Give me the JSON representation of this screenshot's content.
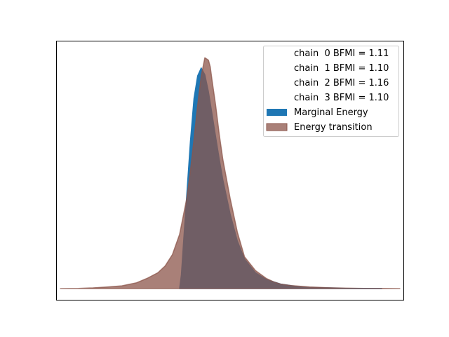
{
  "chart_data": {
    "type": "area",
    "title": "",
    "xlabel": "",
    "ylabel": "",
    "xticks": false,
    "yticks": false,
    "grid": false,
    "legend_position": "top-right",
    "xlim": [
      -4.0,
      5.6
    ],
    "ylim": [
      0.0,
      1.08
    ],
    "legend_entries": [
      {
        "label": "chain  0 BFMI = 1.11",
        "type": "text-only"
      },
      {
        "label": "chain  1 BFMI = 1.10",
        "type": "text-only"
      },
      {
        "label": "chain  2 BFMI = 1.16",
        "type": "text-only"
      },
      {
        "label": "chain  3 BFMI = 1.10",
        "type": "text-only"
      }
    ],
    "series": [
      {
        "name": "Marginal Energy",
        "color": "#1f77b4",
        "opacity": 1.0,
        "x": [
          -0.6,
          -0.55,
          -0.45,
          -0.3,
          -0.2,
          -0.1,
          0.0,
          0.1,
          0.2,
          0.3,
          0.4,
          0.5,
          0.6,
          0.8,
          1.0,
          1.2,
          1.5,
          1.8,
          2.2,
          2.6,
          3.0,
          3.5,
          4.0,
          4.5,
          5.0
        ],
        "y": [
          0.0,
          0.06,
          0.3,
          0.65,
          0.84,
          0.94,
          0.975,
          0.945,
          0.87,
          0.77,
          0.67,
          0.57,
          0.48,
          0.33,
          0.21,
          0.13,
          0.07,
          0.04,
          0.02,
          0.01,
          0.005,
          0.003,
          0.001,
          0.0005,
          0.0
        ]
      },
      {
        "name": "Energy transition",
        "color": "#8c564b",
        "opacity": 0.75,
        "x": [
          -3.9,
          -3.4,
          -3.0,
          -2.6,
          -2.2,
          -1.8,
          -1.5,
          -1.2,
          -1.0,
          -0.8,
          -0.6,
          -0.4,
          -0.3,
          -0.2,
          -0.1,
          0.0,
          0.1,
          0.2,
          0.25,
          0.3,
          0.4,
          0.5,
          0.6,
          0.8,
          1.0,
          1.2,
          1.5,
          1.8,
          2.0,
          2.2,
          2.5,
          3.0,
          3.5,
          4.0,
          4.5,
          5.0,
          5.5
        ],
        "y": [
          0.0,
          0.001,
          0.003,
          0.007,
          0.012,
          0.025,
          0.045,
          0.07,
          0.1,
          0.15,
          0.24,
          0.4,
          0.52,
          0.66,
          0.81,
          0.94,
          1.02,
          1.01,
          0.98,
          0.92,
          0.81,
          0.68,
          0.57,
          0.4,
          0.25,
          0.14,
          0.08,
          0.045,
          0.03,
          0.02,
          0.013,
          0.007,
          0.004,
          0.002,
          0.001,
          0.0005,
          0.0
        ]
      }
    ]
  }
}
